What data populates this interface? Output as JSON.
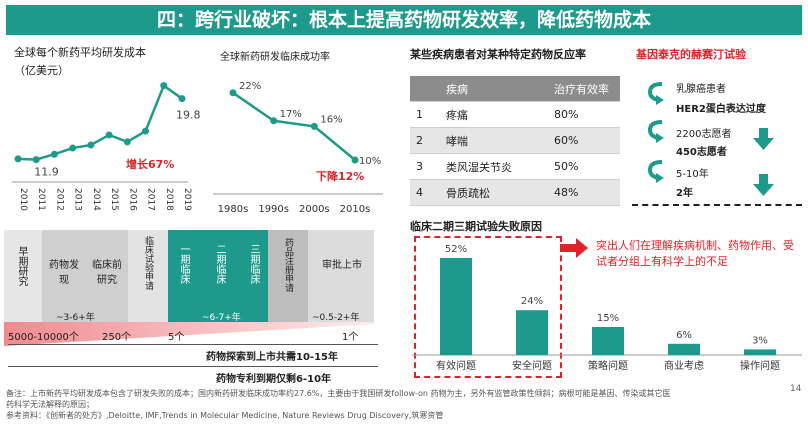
{
  "title": "四：跨行业破坏：根本上提高药物研发效率，降低药物成本",
  "page_number": "14",
  "notes": {
    "line1": "备注：上市新药平均研发成本包含了研发失败的成本；国内新药研发临床成功率约27.6%，主要由于我国研发follow-on 药物为主，另外有监管政策性倾斜；病根可能是基因、传染或其它医",
    "line2": "药科学无法解释的原因；",
    "line3": "参考资料：《创新者的处方》,Deloitte, IMF,Trends in Molecular Medicine, Nature Reviews Drug Discovery,筑寒资管"
  },
  "cost_chart": {
    "title": "全球每个新药平均研发成本",
    "unit": "（亿美元）",
    "growth_label": "增长67%",
    "label_first": "11.9",
    "label_last": "19.8"
  },
  "success_chart": {
    "title": "全球新药研发临床成功率",
    "drop_label": "下降12%"
  },
  "response_table": {
    "title": "某些疾病患者对某种特定药物反应率",
    "headers": [
      "",
      "疾病",
      "治疗有效率"
    ],
    "rows": [
      [
        "1",
        "疼痛",
        "80%"
      ],
      [
        "2",
        "哮喘",
        "60%"
      ],
      [
        "3",
        "类风湿关节炎",
        "50%"
      ],
      [
        "4",
        "骨质疏松",
        "48%"
      ]
    ]
  },
  "herceptin": {
    "title": "基因泰克的赫赛汀试验",
    "line1": "乳腺癌患者",
    "line2": "HER2蛋白表达过度",
    "line3": "2200志愿者",
    "line4": "450志愿者",
    "line5": "5-10年",
    "line6": "2年"
  },
  "pipeline": {
    "stages": [
      "早期研究",
      "药物发现",
      "临床前研究",
      "临床试验申请",
      "一期临床",
      "二期临床",
      "三期临床",
      "药品注册申请",
      "审批上市"
    ],
    "durations": [
      "~3-6+年",
      "~6-7+年",
      "~0.5-2+年"
    ],
    "counts": [
      "5000-10000个",
      "250个",
      "5个",
      "1个"
    ],
    "total_time": "药物探索到上市共需10-15年",
    "patent_time": "药物专利到期仅剩6-10年"
  },
  "failure_chart": {
    "title": "临床二期三期试验失败原因",
    "callout": "突出人们在理解疾病机制、药物作用、受试者分组上有科学上的不足"
  },
  "chart_data": [
    {
      "type": "line",
      "title": "全球每个新药平均研发成本",
      "ylabel": "（亿美元）",
      "x": [
        "2010",
        "2011",
        "2012",
        "2013",
        "2014",
        "2015",
        "2016",
        "2017",
        "2018",
        "2019"
      ],
      "series": [
        {
          "values": [
            12.0,
            11.9,
            12.6,
            13.4,
            13.8,
            15.1,
            14.2,
            15.6,
            21.5,
            19.8
          ]
        }
      ],
      "ylim": [
        9,
        23
      ],
      "data_labels": {
        "1": "11.9",
        "9": "19.8"
      },
      "color": "#1e9a8c"
    },
    {
      "type": "line",
      "title": "全球新药研发临床成功率",
      "x": [
        "1980s",
        "1990s",
        "2000s",
        "2010s"
      ],
      "series": [
        {
          "values": [
            22,
            17,
            16,
            10
          ]
        }
      ],
      "data_labels": [
        "22%",
        "17%",
        "16%",
        "10%"
      ],
      "ylim": [
        5,
        25
      ],
      "color": "#1e9a8c"
    },
    {
      "type": "bar",
      "title": "临床二期三期试验失败原因",
      "categories": [
        "有效问题",
        "安全问题",
        "策略问题",
        "商业考虑",
        "操作问题"
      ],
      "values": [
        52,
        24,
        15,
        6,
        3
      ],
      "data_labels": [
        "52%",
        "24%",
        "15%",
        "6%",
        "3%"
      ],
      "ylim": [
        0,
        60
      ],
      "color": "#1e9a8c"
    }
  ]
}
